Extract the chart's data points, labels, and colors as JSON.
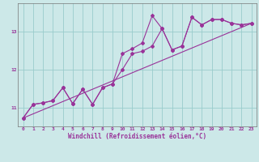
{
  "xlabel": "Windchill (Refroidissement éolien,°C)",
  "bg_color": "#cce8e8",
  "grid_color": "#99cccc",
  "line_color": "#993399",
  "xlim": [
    -0.5,
    23.5
  ],
  "ylim": [
    10.5,
    13.75
  ],
  "xticks": [
    0,
    1,
    2,
    3,
    4,
    5,
    6,
    7,
    8,
    9,
    10,
    11,
    12,
    13,
    14,
    15,
    16,
    17,
    18,
    19,
    20,
    21,
    22,
    23
  ],
  "yticks": [
    11,
    12,
    13
  ],
  "series1_x": [
    0,
    1,
    2,
    3,
    4,
    5,
    6,
    7,
    8,
    9,
    10,
    11,
    12,
    13,
    14,
    15,
    16,
    17,
    18,
    19,
    20,
    21,
    22,
    23
  ],
  "series1_y": [
    10.72,
    11.08,
    11.12,
    11.18,
    11.52,
    11.1,
    11.48,
    11.08,
    11.52,
    11.62,
    12.42,
    12.55,
    12.7,
    13.42,
    13.08,
    12.52,
    12.62,
    13.38,
    13.18,
    13.32,
    13.32,
    13.22,
    13.18,
    13.22
  ],
  "series2_x": [
    0,
    1,
    2,
    3,
    4,
    5,
    6,
    7,
    8,
    9,
    10,
    11,
    12,
    13,
    14,
    15,
    16,
    17,
    18,
    19,
    20,
    21,
    22,
    23
  ],
  "series2_y": [
    10.72,
    11.08,
    11.12,
    11.18,
    11.52,
    11.1,
    11.48,
    11.08,
    11.52,
    11.62,
    12.0,
    12.42,
    12.48,
    12.62,
    13.08,
    12.52,
    12.62,
    13.38,
    13.18,
    13.32,
    13.32,
    13.22,
    13.18,
    13.22
  ],
  "series3_x": [
    0,
    23
  ],
  "series3_y": [
    10.72,
    13.22
  ],
  "marker": "D",
  "markersize": 2.0,
  "linewidth": 0.8,
  "tick_fontsize": 4.5,
  "label_fontsize": 5.5
}
